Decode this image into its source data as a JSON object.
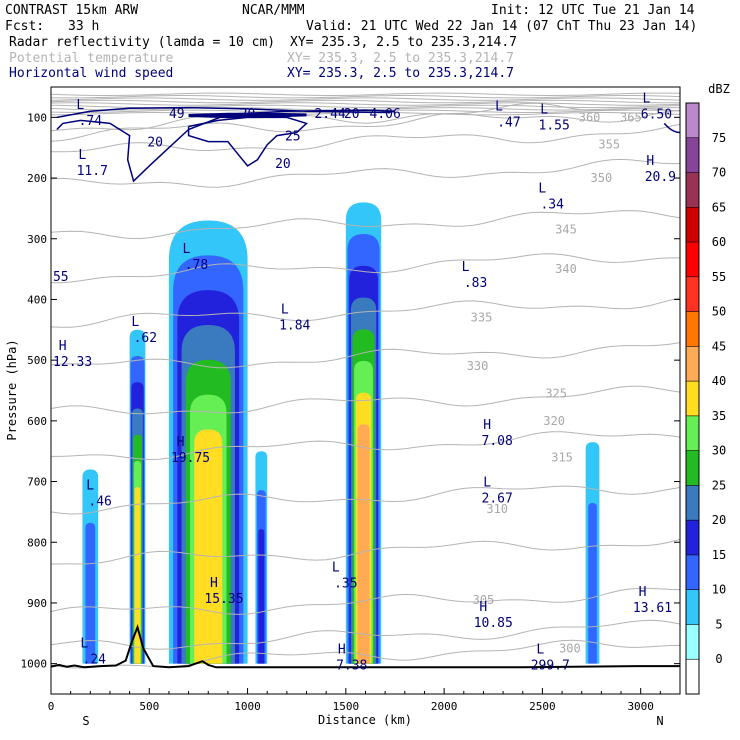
{
  "header": {
    "model": "CONTRAST 15km ARW",
    "org": "NCAR/MMM",
    "init": "Init: 12 UTC Tue 21 Jan 14",
    "fcst_label": "Fcst:",
    "fcst_value": "33 h",
    "valid": "Valid: 21 UTC Wed 22 Jan 14 (07 ChT Thu 23 Jan 14)",
    "fields": [
      {
        "name": "Radar reflectivity (lamda = 10 cm)",
        "xy": "XY= 235.3,  2.5 to 235.3,214.7",
        "color": "#000000"
      },
      {
        "name": "Potential temperature",
        "xy": "XY= 235.3,  2.5 to 235.3,214.7",
        "color": "#b4b4b4"
      },
      {
        "name": "Horizontal wind speed",
        "xy": "XY= 235.3,  2.5 to 235.3,214.7",
        "color": "#00007a"
      }
    ]
  },
  "chart_data": {
    "type": "heatmap",
    "xlabel": "Distance (km)",
    "ylabel": "Pressure (hPa)",
    "xlim": [
      0,
      3200
    ],
    "ylim": [
      1050,
      50
    ],
    "x_ticks": [
      "0",
      "500",
      "1000",
      "1500",
      "2000",
      "2500",
      "3000"
    ],
    "y_ticks": [
      "100",
      "200",
      "300",
      "400",
      "500",
      "600",
      "700",
      "800",
      "900",
      "1000"
    ],
    "x_end_labels": [
      "S",
      "N"
    ],
    "colorbar": {
      "unit": "dBZ",
      "levels": [
        0,
        5,
        10,
        15,
        20,
        25,
        30,
        35,
        40,
        45,
        50,
        55,
        60,
        65,
        70,
        75
      ],
      "colors": [
        "#ffffff",
        "#99ffff",
        "#33c6f8",
        "#3366ff",
        "#2222dd",
        "#3a7abf",
        "#22bb22",
        "#66ee55",
        "#ffdd22",
        "#ffaa55",
        "#ff7700",
        "#ff3322",
        "#ff0000",
        "#cc0000",
        "#993355",
        "#884499",
        "#bb88cc"
      ],
      "labels": [
        "0",
        "5",
        "10",
        "15",
        "20",
        "25",
        "30",
        "35",
        "40",
        "45",
        "50",
        "55",
        "60",
        "65",
        "70",
        "75"
      ]
    },
    "reflectivity_columns": [
      {
        "x": [
          160,
          240
        ],
        "top": 680,
        "bottom": 1000,
        "max_dbz": 10
      },
      {
        "x": [
          400,
          480
        ],
        "top": 450,
        "bottom": 1000,
        "max_dbz": 35
      },
      {
        "x": [
          600,
          1000
        ],
        "top": 270,
        "bottom": 1000,
        "max_dbz": 35
      },
      {
        "x": [
          1040,
          1100
        ],
        "top": 650,
        "bottom": 1000,
        "max_dbz": 15
      },
      {
        "x": [
          1500,
          1680
        ],
        "top": 240,
        "bottom": 1000,
        "max_dbz": 40
      },
      {
        "x": [
          2720,
          2790
        ],
        "top": 635,
        "bottom": 1000,
        "max_dbz": 10
      }
    ],
    "theta_contours": {
      "levels": [
        295,
        300,
        305,
        310,
        315,
        320,
        325,
        330,
        335,
        340,
        345,
        350,
        355,
        360,
        365
      ],
      "labels": [
        "300",
        "305",
        "310",
        "315",
        "320",
        "325",
        "330",
        "335",
        "340",
        "345",
        "350",
        "355",
        "360",
        "365"
      ]
    },
    "wind_contours": {
      "labels": [
        "20",
        "20",
        "20",
        "25",
        "20",
        "2.44",
        "4.06",
        "49"
      ]
    },
    "extrema": [
      {
        "kind": "L",
        "value": ".74",
        "x": 200,
        "p": 93
      },
      {
        "kind": "L",
        "value": "11.7",
        "x": 210,
        "p": 175
      },
      {
        "kind": "L",
        "value": ".55",
        "x": 30,
        "p": 350
      },
      {
        "kind": "L",
        "value": ".62",
        "x": 480,
        "p": 450
      },
      {
        "kind": "H",
        "value": "12.33",
        "x": 110,
        "p": 490
      },
      {
        "kind": "L",
        "value": ".78",
        "x": 740,
        "p": 330
      },
      {
        "kind": "L",
        "value": "1.84",
        "x": 1240,
        "p": 430
      },
      {
        "kind": "H",
        "value": "19.75",
        "x": 710,
        "p": 648
      },
      {
        "kind": "L",
        "value": ".46",
        "x": 250,
        "p": 720
      },
      {
        "kind": "H",
        "value": "15.35",
        "x": 880,
        "p": 880
      },
      {
        "kind": "L",
        "value": ".24",
        "x": 220,
        "p": 980
      },
      {
        "kind": "L",
        "value": ".35",
        "x": 1500,
        "p": 855
      },
      {
        "kind": "H",
        "value": "7.38",
        "x": 1530,
        "p": 990
      },
      {
        "kind": "L",
        "value": ".47",
        "x": 2330,
        "p": 95
      },
      {
        "kind": "L",
        "value": "1.55",
        "x": 2560,
        "p": 100
      },
      {
        "kind": "L",
        "value": "6.50",
        "x": 3080,
        "p": 82
      },
      {
        "kind": "H",
        "value": "20.9",
        "x": 3100,
        "p": 185
      },
      {
        "kind": "L",
        "value": ".34",
        "x": 2550,
        "p": 230
      },
      {
        "kind": "L",
        "value": ".83",
        "x": 2160,
        "p": 360
      },
      {
        "kind": "H",
        "value": "7.08",
        "x": 2270,
        "p": 620
      },
      {
        "kind": "L",
        "value": "2.67",
        "x": 2270,
        "p": 715
      },
      {
        "kind": "H",
        "value": "10.85",
        "x": 2250,
        "p": 920
      },
      {
        "kind": "H",
        "value": "13.61",
        "x": 3060,
        "p": 895
      },
      {
        "kind": "L",
        "value": "299.7",
        "x": 2540,
        "p": 990
      }
    ],
    "terrain": {
      "x": [
        0,
        40,
        80,
        120,
        170,
        250,
        330,
        380,
        410,
        440,
        470,
        520,
        600,
        700,
        770,
        800,
        840,
        1000,
        1400,
        1800,
        2400,
        3000,
        3200
      ],
      "p": [
        1005,
        1002,
        1005,
        1003,
        1006,
        1004,
        1003,
        995,
        965,
        940,
        975,
        1004,
        1006,
        1004,
        996,
        1002,
        1006,
        1006,
        1006,
        1006,
        1006,
        1004,
        1004
      ]
    }
  }
}
